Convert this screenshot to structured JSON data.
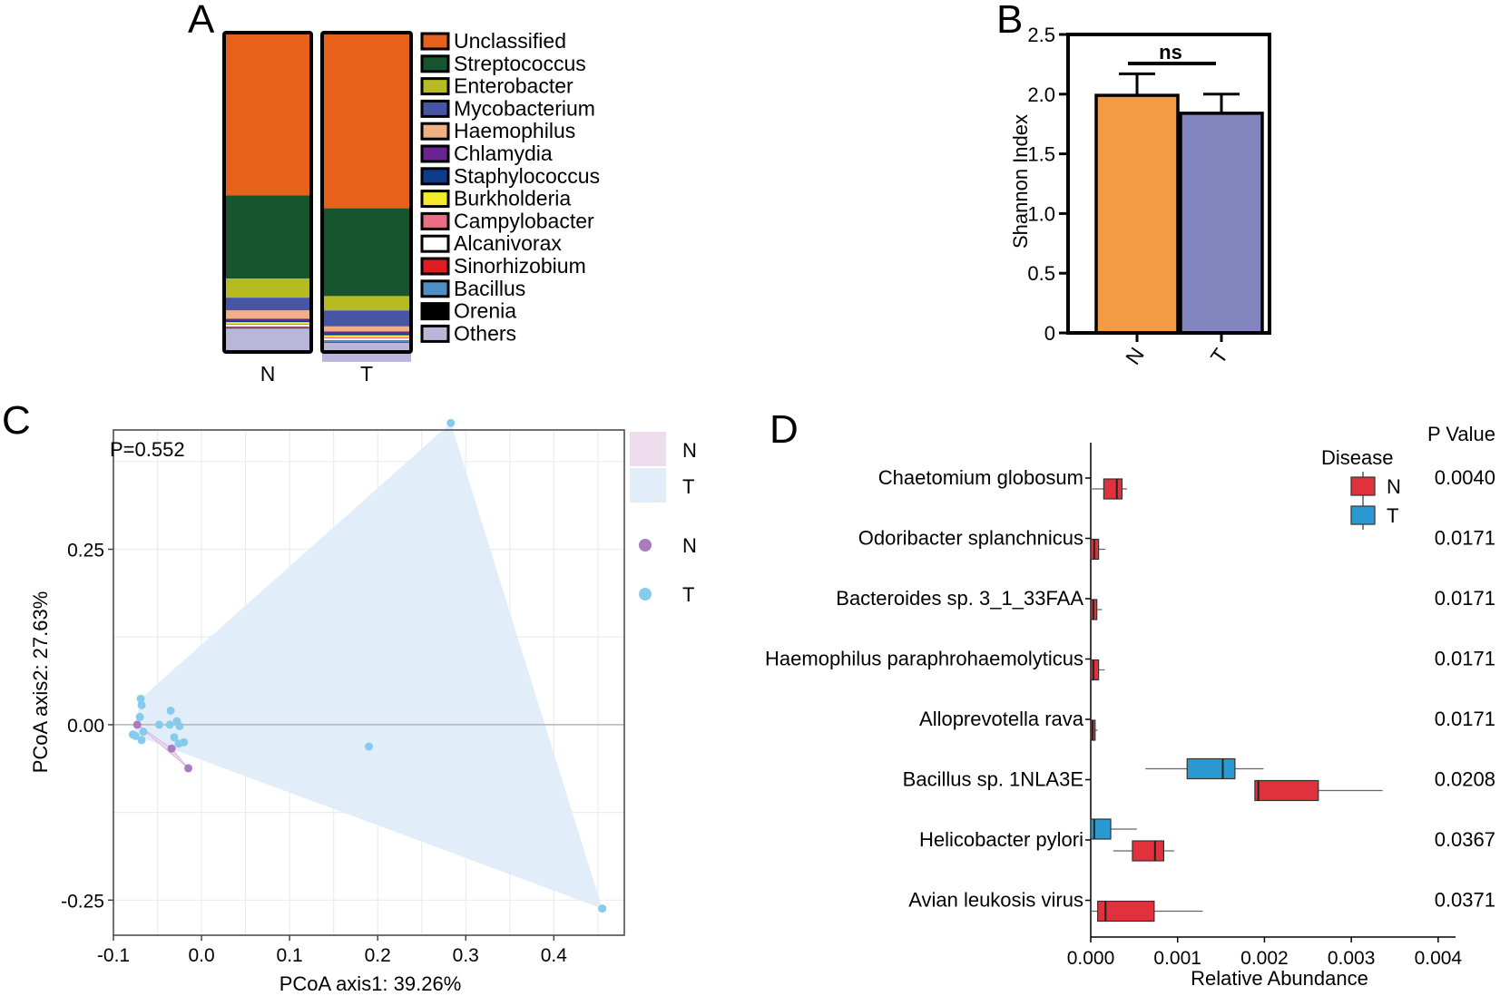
{
  "panel_labels": {
    "a": "A",
    "b": "B",
    "c": "C",
    "d": "D"
  },
  "colors": {
    "Unclassified": "#e8611a",
    "Streptococcus": "#17552e",
    "Enterobacter": "#b7bb22",
    "Mycobacterium": "#4655a4",
    "Haemophilus": "#efb184",
    "Chlamydia": "#6a2490",
    "Staphylococcus": "#0c3c8c",
    "Burkholderia": "#f2ea2d",
    "Campylobacter": "#e86d85",
    "Alcanivorax": "#ffffff",
    "Sinorhizobium": "#e31b23",
    "Bacillus": "#4f8fc4",
    "Orenia": "#000000",
    "Others": "#bab6da",
    "shannon_N": "#f29b44",
    "shannon_T": "#8385bf",
    "pcoa_N": "#a97cbe",
    "pcoa_T": "#86cbeb",
    "hull_N": "#ecdcec",
    "hull_T": "#e1eefa",
    "box_N": "#e0313c",
    "box_T": "#2b9ad2"
  },
  "chart_data": [
    {
      "id": "A",
      "type": "bar",
      "stacked": true,
      "categories": [
        "N",
        "T"
      ],
      "series": [
        {
          "name": "Unclassified",
          "values": [
            51,
            55
          ]
        },
        {
          "name": "Streptococcus",
          "values": [
            26,
            27.5
          ]
        },
        {
          "name": "Enterobacter",
          "values": [
            6,
            4.5
          ]
        },
        {
          "name": "Mycobacterium",
          "values": [
            4,
            5
          ]
        },
        {
          "name": "Haemophilus",
          "values": [
            2.6,
            1.6
          ]
        },
        {
          "name": "Chlamydia",
          "values": [
            0.6,
            0.6
          ]
        },
        {
          "name": "Staphylococcus",
          "values": [
            0.5,
            0.6
          ]
        },
        {
          "name": "Burkholderia",
          "values": [
            0.5,
            0.6
          ]
        },
        {
          "name": "Campylobacter",
          "values": [
            0.3,
            0.4
          ]
        },
        {
          "name": "Alcanivorax",
          "values": [
            0.5,
            0.5
          ]
        },
        {
          "name": "Sinorhizobium",
          "values": [
            0.2,
            0.2
          ]
        },
        {
          "name": "Bacillus",
          "values": [
            0.3,
            0.4
          ]
        },
        {
          "name": "Orenia",
          "values": [
            0.2,
            0.2
          ]
        },
        {
          "name": "Others",
          "values": [
            6.8,
            6.0
          ]
        }
      ],
      "ylim": [
        0,
        100
      ]
    },
    {
      "id": "B",
      "type": "bar",
      "categories": [
        "N",
        "T"
      ],
      "values": [
        1.99,
        1.84
      ],
      "errors": [
        0.18,
        0.16
      ],
      "ylabel": "Shannon Index",
      "ylim": [
        0,
        2.5
      ],
      "yticks": [
        "0",
        "0.5",
        "1.0",
        "1.5",
        "2.0",
        "2.5"
      ],
      "significance": "ns"
    },
    {
      "id": "C",
      "type": "scatter",
      "annotation": "P=0.552",
      "xlabel": "PCoA axis1: 39.26%",
      "ylabel": "PCoA axis2: 27.63%",
      "xlim": [
        -0.1,
        0.48
      ],
      "ylim": [
        -0.3,
        0.42
      ],
      "xticks": [
        "-0.1",
        "0.0",
        "0.1",
        "0.2",
        "0.3",
        "0.4"
      ],
      "yticks": [
        "-0.25",
        "0.00",
        "0.25"
      ],
      "legend_fill": [
        "N",
        "T"
      ],
      "legend_points": [
        "N",
        "T"
      ],
      "series": [
        {
          "name": "N",
          "points": [
            [
              -0.073,
              0.0
            ],
            [
              -0.034,
              -0.034
            ],
            [
              -0.015,
              -0.062
            ]
          ]
        },
        {
          "name": "T",
          "points": [
            [
              0.283,
              0.43
            ],
            [
              0.455,
              -0.262
            ],
            [
              0.19,
              -0.031
            ],
            [
              -0.069,
              0.037
            ],
            [
              -0.068,
              0.028
            ],
            [
              -0.07,
              0.011
            ],
            [
              -0.066,
              -0.01
            ],
            [
              -0.078,
              -0.014
            ],
            [
              -0.075,
              -0.016
            ],
            [
              -0.068,
              -0.022
            ],
            [
              -0.048,
              0.0
            ],
            [
              -0.036,
              0.0
            ],
            [
              -0.035,
              0.02
            ],
            [
              -0.028,
              0.005
            ],
            [
              -0.025,
              -0.002
            ],
            [
              -0.031,
              -0.018
            ],
            [
              -0.026,
              -0.027
            ],
            [
              -0.02,
              -0.025
            ]
          ]
        }
      ],
      "hulls": {
        "N": [
          [
            -0.073,
            0.0
          ],
          [
            -0.034,
            -0.034
          ],
          [
            -0.015,
            -0.062
          ]
        ],
        "T": [
          [
            -0.069,
            0.037
          ],
          [
            0.283,
            0.43
          ],
          [
            0.455,
            -0.262
          ],
          [
            -0.078,
            -0.014
          ]
        ]
      }
    },
    {
      "id": "D",
      "type": "box",
      "xlabel": "Relative Abundance",
      "xlim": [
        0,
        0.0042
      ],
      "xticks": [
        "0.000",
        "0.001",
        "0.002",
        "0.003",
        "0.004"
      ],
      "legend_title": "Disease",
      "legend": [
        "N",
        "T"
      ],
      "pvalue_header": "P Value",
      "categories": [
        "Chaetomium globosum",
        "Odoribacter splanchnicus",
        "Bacteroides sp. 3_1_33FAA",
        "Haemophilus paraphrohaemolyticus",
        "Alloprevotella rava",
        "Bacillus sp. 1NLA3E",
        "Helicobacter pylori",
        "Avian leukosis virus"
      ],
      "pvalues": [
        "0.0040",
        "0.0171",
        "0.0171",
        "0.0171",
        "0.0171",
        "0.0208",
        "0.0367",
        "0.0371"
      ],
      "boxes": [
        {
          "row": 0,
          "group": "N",
          "min": 0.0,
          "q1": 0.00015,
          "median": 0.0003,
          "q3": 0.00036,
          "max": 0.00042
        },
        {
          "row": 1,
          "group": "N",
          "min": 0.0,
          "q1": 0.0,
          "median": 4e-05,
          "q3": 9e-05,
          "max": 0.00017
        },
        {
          "row": 2,
          "group": "N",
          "min": 0.0,
          "q1": 0.0,
          "median": 3e-05,
          "q3": 7e-05,
          "max": 0.00013
        },
        {
          "row": 3,
          "group": "N",
          "min": 0.0,
          "q1": 0.0,
          "median": 3e-05,
          "q3": 9e-05,
          "max": 0.00016
        },
        {
          "row": 4,
          "group": "N",
          "min": 0.0,
          "q1": 0.0,
          "median": 2e-05,
          "q3": 5e-05,
          "max": 8e-05
        },
        {
          "row": 5,
          "group": "T",
          "min": 0.00063,
          "q1": 0.00111,
          "median": 0.00152,
          "q3": 0.00166,
          "max": 0.00199
        },
        {
          "row": 5,
          "group": "N",
          "min": 0.00189,
          "q1": 0.00189,
          "median": 0.00193,
          "q3": 0.00262,
          "max": 0.00336
        },
        {
          "row": 6,
          "group": "T",
          "min": 0.0,
          "q1": 0.0,
          "median": 4e-05,
          "q3": 0.00023,
          "max": 0.00053
        },
        {
          "row": 6,
          "group": "N",
          "min": 0.00026,
          "q1": 0.00048,
          "median": 0.00074,
          "q3": 0.00084,
          "max": 0.00096
        },
        {
          "row": 7,
          "group": "N",
          "min": 0.0,
          "q1": 8e-05,
          "median": 0.00017,
          "q3": 0.00073,
          "max": 0.00129
        }
      ]
    }
  ]
}
